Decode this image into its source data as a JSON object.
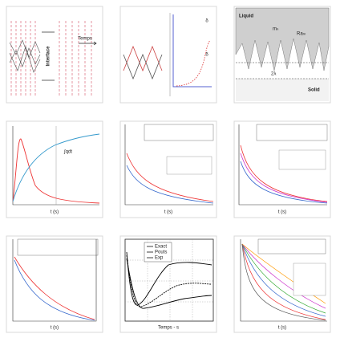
{
  "panels": [
    {
      "texts": [
        "Interface",
        "Temps"
      ]
    },
    {
      "texts": [
        "δ",
        "δ"
      ]
    },
    {
      "texts": [
        "Liquid",
        "Solid",
        "mₙ",
        "Raₘ",
        "2λ"
      ]
    },
    {
      "texts": [
        "t (s)",
        "∫qdt"
      ]
    },
    {
      "texts": [
        "t (s)"
      ]
    },
    {
      "texts": [
        "t (s)"
      ]
    },
    {
      "texts": [
        "t (s)"
      ]
    },
    {
      "texts": [
        "Exact",
        "Pouts",
        "Exp",
        "Temps - s"
      ]
    },
    {
      "texts": [
        "t (s)"
      ]
    }
  ]
}
